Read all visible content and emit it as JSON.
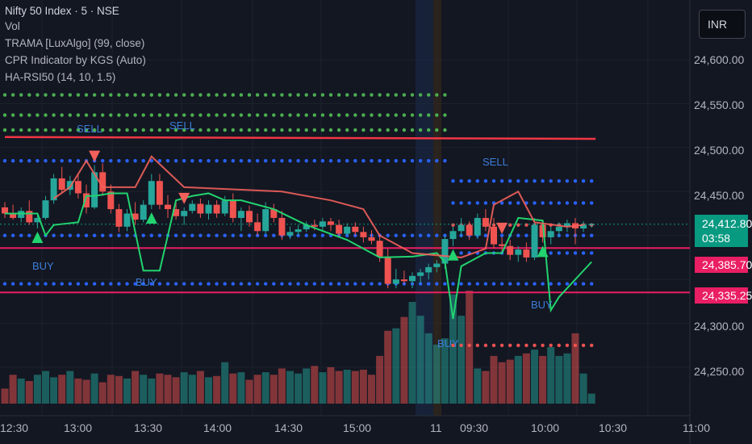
{
  "legend": {
    "symbol": "Nifty 50 Index · 5 · NSE",
    "indicators": [
      "Vol",
      "TRAMA [LuxAlgo] (99, close)",
      "CPR Indicator by KGS (Auto)",
      "HA-RSI50 (14, 10, 1.5)"
    ]
  },
  "currency_button": "INR",
  "price_axis": {
    "labels": [
      "24,600.00",
      "24,550.00",
      "24,500.00",
      "24,450.00",
      "24,300.00",
      "24,250.00"
    ],
    "current_price": "24,412.80",
    "countdown": "03:58",
    "tag1": "24,385.70",
    "tag2": "24,335.25"
  },
  "time_axis": [
    "12:30",
    "13:00",
    "13:30",
    "14:00",
    "14:30",
    "15:00",
    "11",
    "09:30",
    "10:00",
    "10:30",
    "11:00"
  ],
  "signals": {
    "sell": [
      "SELL",
      "SELL",
      "SELL"
    ],
    "buy": [
      "BUY",
      "BUY",
      "BUY",
      "BUY"
    ]
  },
  "colors": {
    "background": "#131722",
    "up_candle": "#26a69a",
    "down_candle": "#ef5350",
    "trama_line": "#f23645",
    "cpr_dots": "#2962ff",
    "tag_pink": "#e91e63",
    "current_price": "#089981"
  },
  "chart_data": {
    "type": "candlestick",
    "y_unit": "price",
    "ylim": [
      24225,
      24640
    ],
    "candles": [
      {
        "o": 24432,
        "h": 24438,
        "l": 24420,
        "c": 24425
      },
      {
        "o": 24425,
        "h": 24435,
        "l": 24418,
        "c": 24420
      },
      {
        "o": 24420,
        "h": 24432,
        "l": 24415,
        "c": 24428
      },
      {
        "o": 24428,
        "h": 24440,
        "l": 24412,
        "c": 24415
      },
      {
        "o": 24415,
        "h": 24425,
        "l": 24408,
        "c": 24420
      },
      {
        "o": 24420,
        "h": 24445,
        "l": 24418,
        "c": 24440
      },
      {
        "o": 24440,
        "h": 24470,
        "l": 24436,
        "c": 24465
      },
      {
        "o": 24465,
        "h": 24478,
        "l": 24448,
        "c": 24452
      },
      {
        "o": 24452,
        "h": 24468,
        "l": 24446,
        "c": 24462
      },
      {
        "o": 24462,
        "h": 24470,
        "l": 24442,
        "c": 24448
      },
      {
        "o": 24448,
        "h": 24458,
        "l": 24425,
        "c": 24432
      },
      {
        "o": 24432,
        "h": 24480,
        "l": 24430,
        "c": 24472
      },
      {
        "o": 24472,
        "h": 24482,
        "l": 24445,
        "c": 24450
      },
      {
        "o": 24450,
        "h": 24458,
        "l": 24425,
        "c": 24430
      },
      {
        "o": 24430,
        "h": 24436,
        "l": 24404,
        "c": 24410
      },
      {
        "o": 24410,
        "h": 24430,
        "l": 24405,
        "c": 24425
      },
      {
        "o": 24425,
        "h": 24438,
        "l": 24412,
        "c": 24418
      },
      {
        "o": 24418,
        "h": 24440,
        "l": 24415,
        "c": 24435
      },
      {
        "o": 24435,
        "h": 24470,
        "l": 24430,
        "c": 24462
      },
      {
        "o": 24462,
        "h": 24470,
        "l": 24430,
        "c": 24435
      },
      {
        "o": 24435,
        "h": 24446,
        "l": 24420,
        "c": 24430
      },
      {
        "o": 24430,
        "h": 24440,
        "l": 24418,
        "c": 24422
      },
      {
        "o": 24422,
        "h": 24432,
        "l": 24412,
        "c": 24428
      },
      {
        "o": 24428,
        "h": 24440,
        "l": 24425,
        "c": 24436
      },
      {
        "o": 24436,
        "h": 24442,
        "l": 24420,
        "c": 24425
      },
      {
        "o": 24425,
        "h": 24440,
        "l": 24418,
        "c": 24435
      },
      {
        "o": 24435,
        "h": 24440,
        "l": 24420,
        "c": 24425
      },
      {
        "o": 24425,
        "h": 24445,
        "l": 24422,
        "c": 24440
      },
      {
        "o": 24440,
        "h": 24448,
        "l": 24415,
        "c": 24420
      },
      {
        "o": 24420,
        "h": 24432,
        "l": 24405,
        "c": 24428
      },
      {
        "o": 24428,
        "h": 24434,
        "l": 24410,
        "c": 24415
      },
      {
        "o": 24415,
        "h": 24425,
        "l": 24400,
        "c": 24405
      },
      {
        "o": 24405,
        "h": 24438,
        "l": 24402,
        "c": 24430
      },
      {
        "o": 24430,
        "h": 24436,
        "l": 24415,
        "c": 24420
      },
      {
        "o": 24420,
        "h": 24428,
        "l": 24395,
        "c": 24400
      },
      {
        "o": 24400,
        "h": 24410,
        "l": 24396,
        "c": 24404
      },
      {
        "o": 24404,
        "h": 24412,
        "l": 24400,
        "c": 24407
      },
      {
        "o": 24407,
        "h": 24416,
        "l": 24404,
        "c": 24412
      },
      {
        "o": 24412,
        "h": 24418,
        "l": 24406,
        "c": 24410
      },
      {
        "o": 24410,
        "h": 24420,
        "l": 24405,
        "c": 24416
      },
      {
        "o": 24416,
        "h": 24420,
        "l": 24405,
        "c": 24412
      },
      {
        "o": 24412,
        "h": 24418,
        "l": 24398,
        "c": 24402
      },
      {
        "o": 24402,
        "h": 24414,
        "l": 24400,
        "c": 24410
      },
      {
        "o": 24410,
        "h": 24415,
        "l": 24400,
        "c": 24404
      },
      {
        "o": 24404,
        "h": 24410,
        "l": 24392,
        "c": 24398
      },
      {
        "o": 24398,
        "h": 24406,
        "l": 24390,
        "c": 24394
      },
      {
        "o": 24394,
        "h": 24402,
        "l": 24370,
        "c": 24376
      },
      {
        "o": 24376,
        "h": 24385,
        "l": 24340,
        "c": 24345
      },
      {
        "o": 24345,
        "h": 24362,
        "l": 24340,
        "c": 24350
      },
      {
        "o": 24350,
        "h": 24360,
        "l": 24345,
        "c": 24348
      },
      {
        "o": 24348,
        "h": 24358,
        "l": 24340,
        "c": 24354
      },
      {
        "o": 24354,
        "h": 24362,
        "l": 24345,
        "c": 24358
      },
      {
        "o": 24358,
        "h": 24368,
        "l": 24350,
        "c": 24364
      },
      {
        "o": 24364,
        "h": 24372,
        "l": 24358,
        "c": 24368
      },
      {
        "o": 24368,
        "h": 24400,
        "l": 24362,
        "c": 24396
      },
      {
        "o": 24396,
        "h": 24410,
        "l": 24388,
        "c": 24405
      },
      {
        "o": 24405,
        "h": 24420,
        "l": 24398,
        "c": 24412
      },
      {
        "o": 24412,
        "h": 24416,
        "l": 24395,
        "c": 24400
      },
      {
        "o": 24400,
        "h": 24425,
        "l": 24396,
        "c": 24420
      },
      {
        "o": 24420,
        "h": 24430,
        "l": 24405,
        "c": 24410
      },
      {
        "o": 24410,
        "h": 24420,
        "l": 24385,
        "c": 24390
      },
      {
        "o": 24390,
        "h": 24398,
        "l": 24382,
        "c": 24388
      },
      {
        "o": 24388,
        "h": 24395,
        "l": 24372,
        "c": 24378
      },
      {
        "o": 24378,
        "h": 24388,
        "l": 24370,
        "c": 24384
      },
      {
        "o": 24384,
        "h": 24392,
        "l": 24370,
        "c": 24375
      },
      {
        "o": 24375,
        "h": 24420,
        "l": 24372,
        "c": 24412
      },
      {
        "o": 24412,
        "h": 24418,
        "l": 24392,
        "c": 24398
      },
      {
        "o": 24398,
        "h": 24410,
        "l": 24390,
        "c": 24405
      },
      {
        "o": 24405,
        "h": 24415,
        "l": 24398,
        "c": 24410
      },
      {
        "o": 24410,
        "h": 24418,
        "l": 24404,
        "c": 24414
      },
      {
        "o": 24414,
        "h": 24420,
        "l": 24390,
        "c": 24408
      },
      {
        "o": 24408,
        "h": 24416,
        "l": 24404,
        "c": 24412
      },
      {
        "o": 24412,
        "h": 24414,
        "l": 24409,
        "c": 24413
      }
    ],
    "volume": [
      120,
      230,
      200,
      180,
      230,
      260,
      210,
      230,
      260,
      200,
      190,
      240,
      170,
      230,
      220,
      200,
      260,
      230,
      200,
      240,
      230,
      210,
      250,
      230,
      260,
      210,
      220,
      330,
      240,
      250,
      190,
      230,
      250,
      230,
      280,
      260,
      240,
      280,
      300,
      250,
      290,
      260,
      270,
      260,
      270,
      230,
      380,
      580,
      600,
      690,
      810,
      700,
      560,
      470,
      520,
      870,
      700,
      900,
      280,
      260,
      380,
      330,
      350,
      380,
      400,
      430,
      380,
      450,
      380,
      400,
      560,
      240,
      80
    ],
    "trama": [
      [
        0,
        24512
      ],
      [
        72,
        24510
      ]
    ],
    "ha_rsi": [
      [
        0,
        24425
      ],
      [
        4,
        24425
      ],
      [
        5,
        24400
      ],
      [
        6,
        24412
      ],
      [
        7,
        24413
      ],
      [
        9,
        24415
      ],
      [
        10,
        24445
      ],
      [
        11,
        24445
      ],
      [
        13,
        24448
      ],
      [
        15,
        24448
      ],
      [
        17,
        24360
      ],
      [
        19,
        24360
      ],
      [
        21,
        24440
      ],
      [
        23,
        24445
      ],
      [
        25,
        24448
      ],
      [
        27,
        24440
      ],
      [
        29,
        24440
      ],
      [
        33,
        24430
      ],
      [
        37,
        24412
      ],
      [
        42,
        24395
      ],
      [
        46,
        24375
      ],
      [
        50,
        24376
      ],
      [
        53,
        24380
      ],
      [
        54,
        24370
      ],
      [
        55,
        24305
      ],
      [
        56,
        24365
      ],
      [
        57,
        24370
      ],
      [
        59,
        24380
      ],
      [
        61,
        24380
      ],
      [
        63,
        24420
      ],
      [
        66,
        24417
      ],
      [
        67,
        24315
      ],
      [
        68,
        24330
      ],
      [
        72,
        24370
      ]
    ],
    "ha_rsi_red": [
      [
        6,
        24442
      ],
      [
        8,
        24455
      ],
      [
        10,
        24485
      ],
      [
        12,
        24455
      ],
      [
        16,
        24455
      ],
      [
        18,
        24490
      ],
      [
        22,
        24455
      ],
      [
        34,
        24450
      ],
      [
        40,
        24440
      ],
      [
        44,
        24430
      ],
      [
        46,
        24400
      ],
      [
        50,
        24380
      ],
      [
        56,
        24375
      ],
      [
        59,
        24385
      ],
      [
        60,
        24435
      ],
      [
        63,
        24450
      ],
      [
        65,
        24415
      ],
      [
        69,
        24410
      ],
      [
        71,
        24412
      ]
    ],
    "cpr_levels": [
      24560,
      24537,
      24520,
      24485,
      24462,
      24437,
      24412,
      24400,
      24380,
      24345,
      24275
    ],
    "signals": [
      {
        "type": "sell",
        "i": 11
      },
      {
        "type": "sell",
        "i": 22
      },
      {
        "type": "sell",
        "i": 61
      },
      {
        "type": "buy",
        "i": 4
      },
      {
        "type": "buy",
        "i": 18
      },
      {
        "type": "buy",
        "i": 55
      },
      {
        "type": "buy",
        "i": 66
      }
    ]
  }
}
